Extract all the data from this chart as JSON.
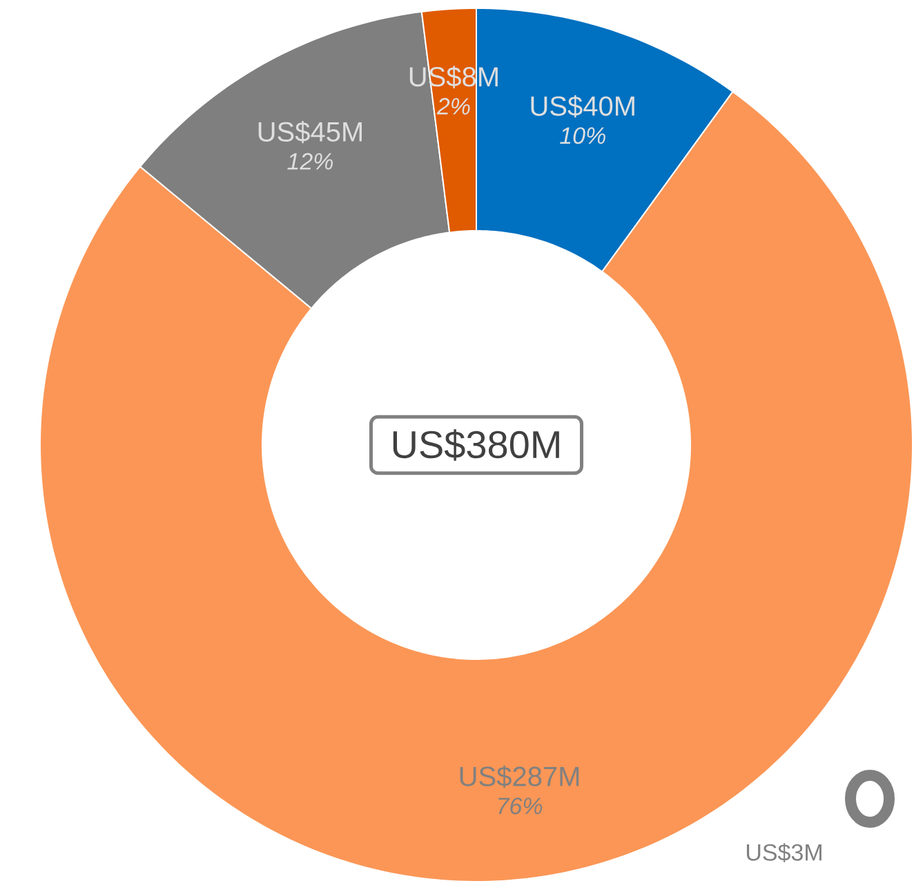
{
  "chart_data": {
    "type": "donut",
    "categories": [
      null,
      null,
      null,
      null
    ],
    "values": [
      10,
      76,
      12,
      2
    ],
    "colors": [
      "#0070c0",
      "#fb9656",
      "#7f7f7f",
      "#e05a00"
    ],
    "value_labels": [
      "10%",
      "76%",
      "12%",
      "2%"
    ],
    "annotations": [
      "US$380M",
      "US$40M",
      "US$287M",
      "US$45M",
      "US$8M",
      "US$3M"
    ]
  }
}
